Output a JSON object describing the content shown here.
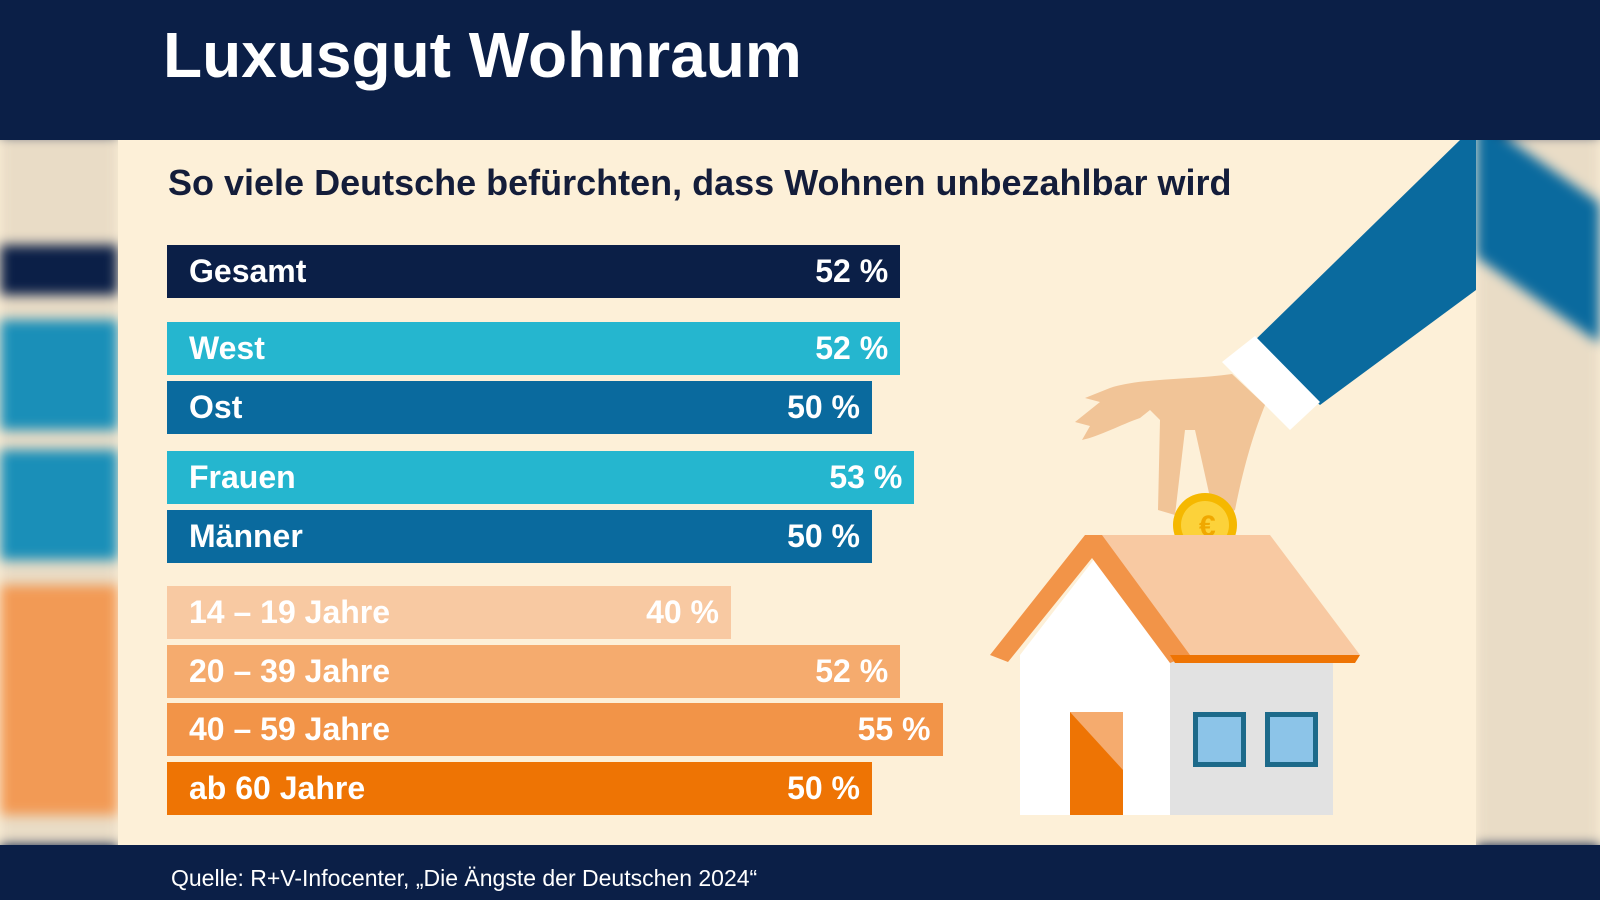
{
  "title": "Luxusgut Wohnraum",
  "subtitle": "So viele Deutsche befürchten, dass Wohnen unbezahlbar wird",
  "source": "Quelle: R+V-Infocenter, „Die Ängste der Deutschen 2024“",
  "colors": {
    "header": "#0b1f47",
    "background": "#fdf0d8",
    "gesamt": "#0b1f47",
    "light_blue": "#25b6cf",
    "dark_blue": "#0a6a9e",
    "age_14_19": "#f8c9a2",
    "age_20_39": "#f5ab6e",
    "age_40_59": "#f29448",
    "age_60_plus": "#ee7404"
  },
  "illustration": {
    "icons": [
      "hand-icon",
      "euro-coin-icon",
      "house-piggy-bank-icon"
    ]
  },
  "chart_data": {
    "type": "bar",
    "orientation": "horizontal",
    "title": "So viele Deutsche befürchten, dass Wohnen unbezahlbar wird",
    "unit": "%",
    "xlim": [
      0,
      100
    ],
    "grid": false,
    "categories": [
      "Gesamt",
      "West",
      "Ost",
      "Frauen",
      "Männer",
      "14 – 19 Jahre",
      "20 – 39 Jahre",
      "40 – 59 Jahre",
      "ab 60 Jahre"
    ],
    "values": [
      52,
      52,
      50,
      53,
      50,
      40,
      52,
      55,
      50
    ],
    "value_labels": [
      "52 %",
      "52 %",
      "50 %",
      "53 %",
      "50 %",
      "40 %",
      "52 %",
      "55 %",
      "50 %"
    ],
    "bar_colors": [
      "#0b1f47",
      "#25b6cf",
      "#0a6a9e",
      "#25b6cf",
      "#0a6a9e",
      "#f8c9a2",
      "#f5ab6e",
      "#f29448",
      "#ee7404"
    ],
    "groups": [
      [
        "Gesamt"
      ],
      [
        "West",
        "Ost"
      ],
      [
        "Frauen",
        "Männer"
      ],
      [
        "14 – 19 Jahre",
        "20 – 39 Jahre",
        "40 – 59 Jahre",
        "ab 60 Jahre"
      ]
    ]
  }
}
